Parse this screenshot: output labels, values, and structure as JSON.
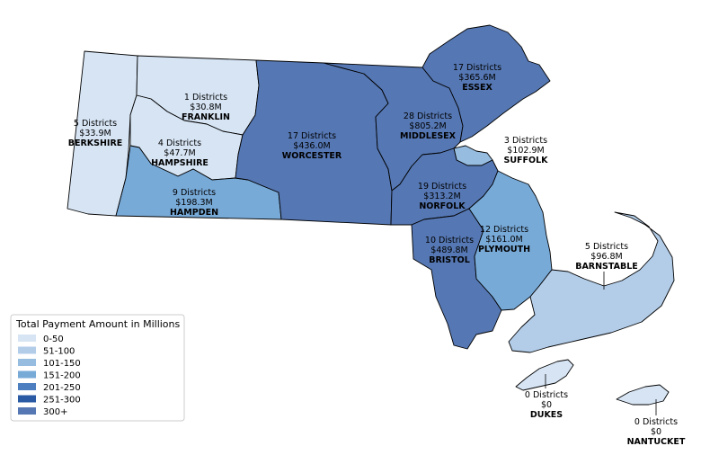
{
  "legend": {
    "title": "Total Payment Amount in Millions",
    "items": [
      {
        "label": "0-50",
        "color": "#d6e4f4"
      },
      {
        "label": "51-100",
        "color": "#b3cde9"
      },
      {
        "label": "101-150",
        "color": "#96bde0"
      },
      {
        "label": "151-200",
        "color": "#78aad8"
      },
      {
        "label": "201-250",
        "color": "#4d7fc0"
      },
      {
        "label": "251-300",
        "color": "#2b5aa4"
      },
      {
        "label": "300+",
        "color": "#5577b3"
      }
    ]
  },
  "counties": [
    {
      "id": "berkshire",
      "name": "BERKSHIRE",
      "districts": "5 Districts",
      "amount": "$33.9M",
      "color": "#d6e4f4"
    },
    {
      "id": "franklin",
      "name": "FRANKLIN",
      "districts": "1 Districts",
      "amount": "$30.8M",
      "color": "#d6e4f4"
    },
    {
      "id": "hampshire",
      "name": "HAMPSHIRE",
      "districts": "4 Districts",
      "amount": "$47.7M",
      "color": "#d6e4f4"
    },
    {
      "id": "hampden",
      "name": "HAMPDEN",
      "districts": "9 Districts",
      "amount": "$198.3M",
      "color": "#78aad8"
    },
    {
      "id": "worcester",
      "name": "WORCESTER",
      "districts": "17 Districts",
      "amount": "$436.0M",
      "color": "#5577b3"
    },
    {
      "id": "middlesex",
      "name": "MIDDLESEX",
      "districts": "28 Districts",
      "amount": "$805.2M",
      "color": "#5577b3"
    },
    {
      "id": "essex",
      "name": "ESSEX",
      "districts": "17 Districts",
      "amount": "$365.6M",
      "color": "#5577b3"
    },
    {
      "id": "suffolk",
      "name": "SUFFOLK",
      "districts": "3 Districts",
      "amount": "$102.9M",
      "color": "#96bde0"
    },
    {
      "id": "norfolk",
      "name": "NORFOLK",
      "districts": "19 Districts",
      "amount": "$313.2M",
      "color": "#5577b3"
    },
    {
      "id": "bristol",
      "name": "BRISTOL",
      "districts": "10 Districts",
      "amount": "$489.8M",
      "color": "#5577b3"
    },
    {
      "id": "plymouth",
      "name": "PLYMOUTH",
      "districts": "12 Districts",
      "amount": "$161.0M",
      "color": "#78aad8"
    },
    {
      "id": "barnstable",
      "name": "BARNSTABLE",
      "districts": "5 Districts",
      "amount": "$96.8M",
      "color": "#b3cde9"
    },
    {
      "id": "dukes",
      "name": "DUKES",
      "districts": "0 Districts",
      "amount": "$0",
      "color": "#d6e4f4"
    },
    {
      "id": "nantucket",
      "name": "NANTUCKET",
      "districts": "0 Districts",
      "amount": "$0",
      "color": "#d6e4f4"
    }
  ]
}
